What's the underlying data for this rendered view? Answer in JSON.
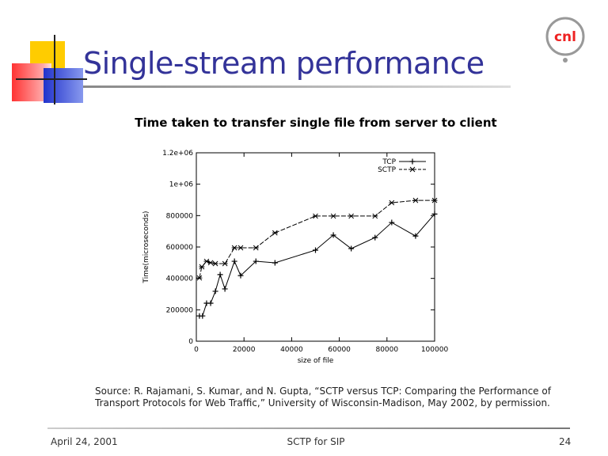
{
  "slide": {
    "title": "Single-stream performance",
    "logo_text": "cnl",
    "source": "Source: R. Rajamani, S. Kumar, and N. Gupta, “SCTP versus TCP: Comparing the Performance of Transport Protocols for Web Traffic,” University of Wisconsin-Madison, May 2002, by permission.",
    "footer": {
      "date": "April 24, 2001",
      "center": "SCTP for SIP",
      "page": "24"
    }
  },
  "chart_data": {
    "type": "line",
    "title": "Time taken to transfer single file from server to client",
    "xlabel": "size of file",
    "ylabel": "Time(microseconds)",
    "xlim": [
      0,
      100000
    ],
    "ylim": [
      0,
      1200000
    ],
    "xticks": [
      0,
      20000,
      40000,
      60000,
      80000,
      100000
    ],
    "xtick_labels": [
      "0",
      "20000",
      "40000",
      "60000",
      "80000",
      "100000"
    ],
    "yticks": [
      0,
      200000,
      400000,
      600000,
      800000,
      1000000,
      1200000
    ],
    "ytick_labels": [
      "0",
      "200000",
      "400000",
      "600000",
      "800000",
      "1e+06",
      "1.2e+06"
    ],
    "legend": "top-right",
    "series": [
      {
        "name": "TCP",
        "marker": "+",
        "dash": "solid",
        "x": [
          1300,
          2600,
          4300,
          6000,
          8000,
          10000,
          12000,
          16000,
          18600,
          25000,
          33000,
          50000,
          57500,
          65000,
          75000,
          82000,
          92000,
          100000
        ],
        "y": [
          161000,
          161000,
          242000,
          242000,
          318000,
          424000,
          333000,
          509000,
          418000,
          509000,
          499000,
          580000,
          676000,
          590000,
          660000,
          756000,
          670000,
          810000
        ]
      },
      {
        "name": "SCTP",
        "marker": "x",
        "dash": "dashed",
        "x": [
          1300,
          2300,
          4300,
          6000,
          8000,
          12000,
          16000,
          18600,
          25000,
          33000,
          50000,
          57500,
          65000,
          75000,
          82000,
          92000,
          100000
        ],
        "y": [
          403000,
          474000,
          509000,
          500000,
          494000,
          494000,
          595000,
          595000,
          595000,
          690000,
          797000,
          797000,
          797000,
          797000,
          882000,
          897000,
          897000
        ]
      }
    ]
  }
}
